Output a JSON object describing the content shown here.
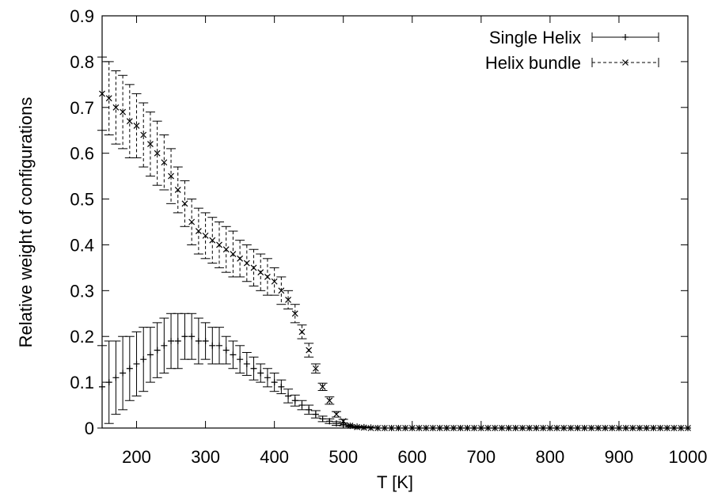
{
  "chart_data": {
    "type": "scatter",
    "title": "",
    "xlabel": "T [K]",
    "ylabel": "Relative weight of configurations",
    "xlim": [
      150,
      1000
    ],
    "ylim": [
      0,
      0.9
    ],
    "x_ticks": [
      "200",
      "300",
      "400",
      "500",
      "600",
      "700",
      "800",
      "900",
      "1000"
    ],
    "y_ticks": [
      "0",
      "0.1",
      "0.2",
      "0.3",
      "0.4",
      "0.5",
      "0.6",
      "0.7",
      "0.8",
      "0.9"
    ],
    "x_tick_values": [
      200,
      300,
      400,
      500,
      600,
      700,
      800,
      900,
      1000
    ],
    "y_tick_values": [
      0,
      0.1,
      0.2,
      0.3,
      0.4,
      0.5,
      0.6,
      0.7,
      0.8,
      0.9
    ],
    "grid": false,
    "legend_position": "top-right",
    "series": [
      {
        "name": "Single Helix",
        "marker": "plus",
        "line_style": "solid",
        "color": "#000000",
        "x": [
          150,
          160,
          170,
          180,
          190,
          200,
          210,
          220,
          230,
          240,
          250,
          260,
          270,
          280,
          290,
          300,
          310,
          320,
          330,
          340,
          350,
          360,
          370,
          380,
          390,
          400,
          410,
          420,
          430,
          440,
          450,
          460,
          470,
          480,
          490,
          500,
          510,
          520,
          530,
          540,
          550,
          560,
          570,
          580,
          590,
          600,
          610,
          620,
          630,
          640,
          650,
          660,
          670,
          680,
          690,
          700,
          710,
          720,
          730,
          740,
          750,
          760,
          770,
          780,
          790,
          800,
          810,
          820,
          830,
          840,
          850,
          860,
          870,
          880,
          890,
          900,
          910,
          920,
          930,
          940,
          950,
          960,
          970,
          980,
          990,
          1000
        ],
        "y": [
          0.09,
          0.1,
          0.11,
          0.12,
          0.13,
          0.14,
          0.15,
          0.16,
          0.17,
          0.18,
          0.19,
          0.19,
          0.2,
          0.2,
          0.19,
          0.19,
          0.18,
          0.18,
          0.17,
          0.16,
          0.15,
          0.14,
          0.13,
          0.12,
          0.11,
          0.1,
          0.09,
          0.07,
          0.06,
          0.05,
          0.04,
          0.03,
          0.02,
          0.015,
          0.01,
          0.008,
          0.005,
          0.003,
          0.002,
          0.001,
          0,
          0,
          0,
          0,
          0,
          0,
          0,
          0,
          0,
          0,
          0,
          0,
          0,
          0,
          0,
          0,
          0,
          0,
          0,
          0,
          0,
          0,
          0,
          0,
          0,
          0,
          0,
          0,
          0,
          0,
          0,
          0,
          0,
          0,
          0,
          0,
          0,
          0,
          0,
          0,
          0,
          0,
          0,
          0,
          0,
          0
        ],
        "error": [
          0.09,
          0.09,
          0.08,
          0.08,
          0.07,
          0.07,
          0.07,
          0.06,
          0.06,
          0.06,
          0.06,
          0.06,
          0.05,
          0.05,
          0.05,
          0.04,
          0.04,
          0.04,
          0.03,
          0.03,
          0.03,
          0.025,
          0.025,
          0.02,
          0.02,
          0.02,
          0.015,
          0.015,
          0.012,
          0.01,
          0.01,
          0.008,
          0.006,
          0.005,
          0.004,
          0.003,
          0.002,
          0.001,
          0.001,
          0.001,
          0,
          0,
          0,
          0,
          0,
          0,
          0,
          0,
          0,
          0,
          0,
          0,
          0,
          0,
          0,
          0,
          0,
          0,
          0,
          0,
          0,
          0,
          0,
          0,
          0,
          0,
          0,
          0,
          0,
          0,
          0,
          0,
          0,
          0,
          0,
          0,
          0,
          0,
          0,
          0,
          0,
          0,
          0,
          0,
          0,
          0
        ]
      },
      {
        "name": "Helix bundle",
        "marker": "x",
        "line_style": "dashed",
        "color": "#000000",
        "x": [
          150,
          160,
          170,
          180,
          190,
          200,
          210,
          220,
          230,
          240,
          250,
          260,
          270,
          280,
          290,
          300,
          310,
          320,
          330,
          340,
          350,
          360,
          370,
          380,
          390,
          400,
          410,
          420,
          430,
          440,
          450,
          460,
          470,
          480,
          490,
          500,
          510,
          520,
          530,
          540,
          550,
          560,
          570,
          580,
          590,
          600,
          610,
          620,
          630,
          640,
          650,
          660,
          670,
          680,
          690,
          700,
          710,
          720,
          730,
          740,
          750,
          760,
          770,
          780,
          790,
          800,
          810,
          820,
          830,
          840,
          850,
          860,
          870,
          880,
          890,
          900,
          910,
          920,
          930,
          940,
          950,
          960,
          970,
          980,
          990,
          1000
        ],
        "y": [
          0.73,
          0.72,
          0.7,
          0.69,
          0.67,
          0.66,
          0.64,
          0.62,
          0.6,
          0.58,
          0.55,
          0.52,
          0.49,
          0.45,
          0.43,
          0.42,
          0.41,
          0.4,
          0.39,
          0.38,
          0.37,
          0.36,
          0.35,
          0.34,
          0.33,
          0.32,
          0.3,
          0.28,
          0.25,
          0.21,
          0.17,
          0.13,
          0.09,
          0.06,
          0.03,
          0.015,
          0.005,
          0.002,
          0.001,
          0,
          0,
          0,
          0,
          0,
          0,
          0,
          0,
          0,
          0,
          0,
          0,
          0,
          0,
          0,
          0,
          0,
          0,
          0,
          0,
          0,
          0,
          0,
          0,
          0,
          0,
          0,
          0,
          0,
          0,
          0,
          0,
          0,
          0,
          0,
          0,
          0,
          0,
          0,
          0,
          0,
          0,
          0,
          0,
          0,
          0,
          0
        ],
        "error": [
          0.08,
          0.08,
          0.08,
          0.08,
          0.08,
          0.07,
          0.07,
          0.07,
          0.07,
          0.06,
          0.06,
          0.05,
          0.05,
          0.05,
          0.05,
          0.05,
          0.05,
          0.05,
          0.05,
          0.05,
          0.04,
          0.04,
          0.04,
          0.04,
          0.04,
          0.03,
          0.03,
          0.02,
          0.02,
          0.015,
          0.015,
          0.01,
          0.008,
          0.008,
          0.006,
          0.004,
          0.002,
          0.001,
          0.001,
          0,
          0,
          0,
          0,
          0,
          0,
          0,
          0,
          0,
          0,
          0,
          0,
          0,
          0,
          0,
          0,
          0,
          0,
          0,
          0,
          0,
          0,
          0,
          0,
          0,
          0,
          0,
          0,
          0,
          0,
          0,
          0,
          0,
          0,
          0,
          0,
          0,
          0,
          0,
          0,
          0,
          0,
          0,
          0,
          0,
          0,
          0
        ]
      }
    ]
  }
}
